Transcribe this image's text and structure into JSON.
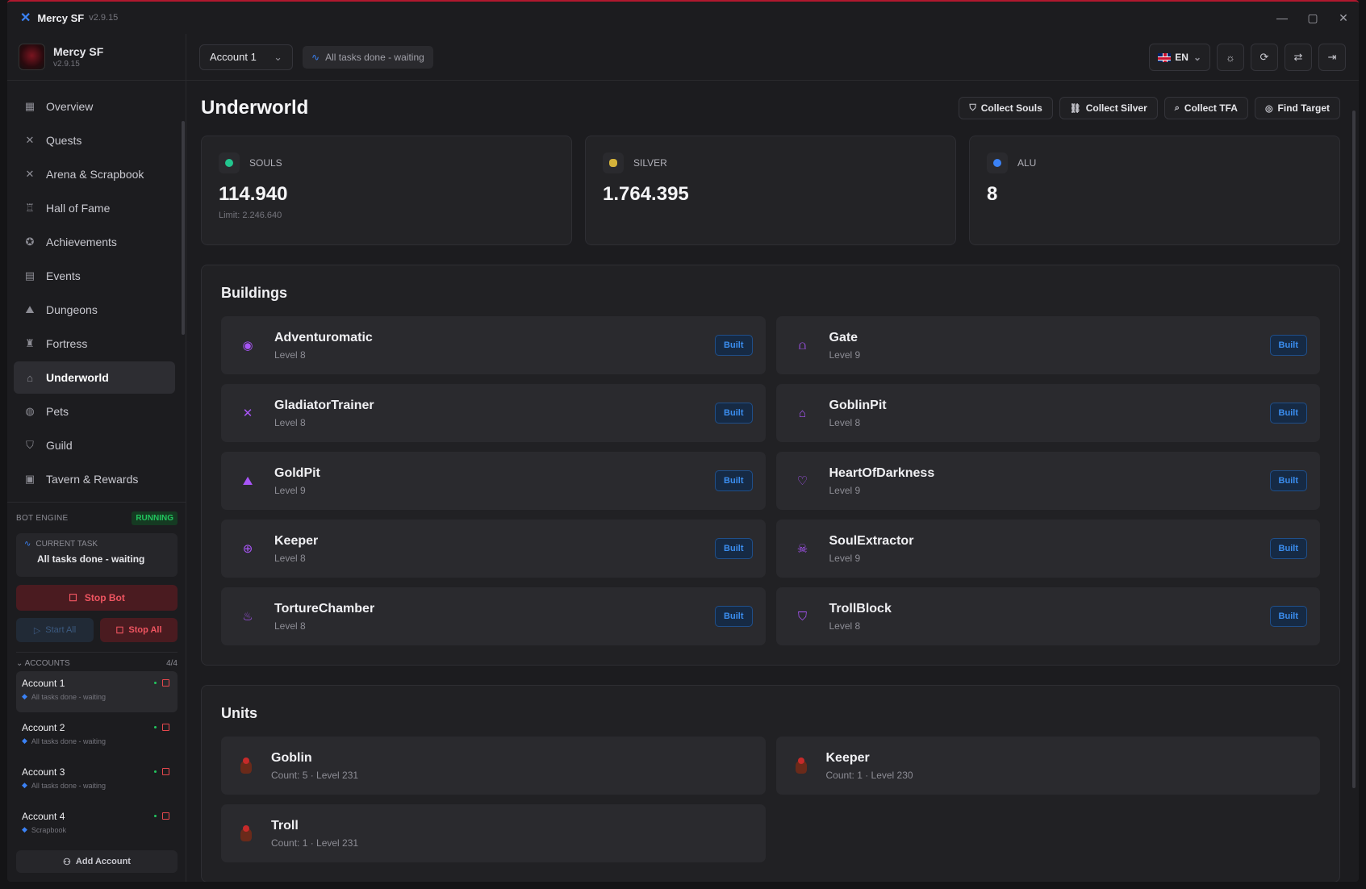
{
  "window": {
    "title": "Mercy SF",
    "version": "v2.9.15"
  },
  "brand": {
    "name": "Mercy SF",
    "version": "v2.9.15"
  },
  "nav": [
    {
      "label": "Overview",
      "icon": "grid-icon",
      "glyph": "▦"
    },
    {
      "label": "Quests",
      "icon": "swords-icon",
      "glyph": "✕"
    },
    {
      "label": "Arena & Scrapbook",
      "icon": "swords-icon",
      "glyph": "✕"
    },
    {
      "label": "Hall of Fame",
      "icon": "trophy-icon",
      "glyph": "♖"
    },
    {
      "label": "Achievements",
      "icon": "award-icon",
      "glyph": "✪"
    },
    {
      "label": "Events",
      "icon": "calendar-icon",
      "glyph": "▤"
    },
    {
      "label": "Dungeons",
      "icon": "mountain-icon",
      "glyph": "⛰"
    },
    {
      "label": "Fortress",
      "icon": "castle-icon",
      "glyph": "♜"
    },
    {
      "label": "Underworld",
      "icon": "home-icon",
      "glyph": "⌂",
      "active": true
    },
    {
      "label": "Pets",
      "icon": "paw-icon",
      "glyph": "◍"
    },
    {
      "label": "Guild",
      "icon": "shield-icon",
      "glyph": "⛉"
    },
    {
      "label": "Tavern & Rewards",
      "icon": "gift-icon",
      "glyph": "▣"
    }
  ],
  "engine": {
    "label": "BOT ENGINE",
    "status": "RUNNING",
    "current_task_label": "CURRENT TASK",
    "current_task": "All tasks done - waiting",
    "stop_bot": "Stop Bot",
    "start_all": "Start All",
    "stop_all": "Stop All"
  },
  "accounts": {
    "label": "ACCOUNTS",
    "count": "4/4",
    "items": [
      {
        "name": "Account 1",
        "status": "All tasks done - waiting"
      },
      {
        "name": "Account 2",
        "status": "All tasks done - waiting"
      },
      {
        "name": "Account 3",
        "status": "All tasks done - waiting"
      },
      {
        "name": "Account 4",
        "status": "Scrapbook"
      }
    ],
    "add": "Add Account"
  },
  "topbar": {
    "account": "Account 1",
    "status": "All tasks done - waiting",
    "lang": "EN"
  },
  "page": {
    "title": "Underworld",
    "actions": [
      {
        "label": "Collect Souls",
        "icon": "soul-icon",
        "glyph": "⛉"
      },
      {
        "label": "Collect Silver",
        "icon": "link-icon",
        "glyph": "⛓"
      },
      {
        "label": "Collect TFA",
        "icon": "search-icon",
        "glyph": "⌕"
      },
      {
        "label": "Find Target",
        "icon": "target-icon",
        "glyph": "◎"
      }
    ]
  },
  "stats": [
    {
      "label": "SOULS",
      "value": "114.940",
      "sub": "Limit: 2.246.640",
      "icon": "soul-gem-icon",
      "color": "#22c58e"
    },
    {
      "label": "SILVER",
      "value": "1.764.395",
      "sub": "",
      "icon": "silver-coin-icon",
      "color": "#d4b23a"
    },
    {
      "label": "ALU",
      "value": "8",
      "sub": "",
      "icon": "alu-icon",
      "color": "#3b82f6"
    }
  ],
  "buildings": {
    "title": "Buildings",
    "built_label": "Built",
    "items": [
      {
        "name": "Adventuromatic",
        "level": "Level 8",
        "icon": "eye-icon",
        "glyph": "◉"
      },
      {
        "name": "Gate",
        "level": "Level 9",
        "icon": "gate-icon",
        "glyph": "⩍"
      },
      {
        "name": "GladiatorTrainer",
        "level": "Level 8",
        "icon": "swords-icon",
        "glyph": "✕"
      },
      {
        "name": "GoblinPit",
        "level": "Level 8",
        "icon": "home-icon",
        "glyph": "⌂"
      },
      {
        "name": "GoldPit",
        "level": "Level 9",
        "icon": "mountain-icon",
        "glyph": "⛰"
      },
      {
        "name": "HeartOfDarkness",
        "level": "Level 9",
        "icon": "heart-icon",
        "glyph": "♡"
      },
      {
        "name": "Keeper",
        "level": "Level 8",
        "icon": "crosshair-icon",
        "glyph": "⊕"
      },
      {
        "name": "SoulExtractor",
        "level": "Level 9",
        "icon": "skull-icon",
        "glyph": "☠"
      },
      {
        "name": "TortureChamber",
        "level": "Level 8",
        "icon": "flame-icon",
        "glyph": "♨"
      },
      {
        "name": "TrollBlock",
        "level": "Level 8",
        "icon": "shield-icon",
        "glyph": "⛉"
      }
    ]
  },
  "units": {
    "title": "Units",
    "items": [
      {
        "name": "Goblin",
        "detail": "Count: 5 · Level 231"
      },
      {
        "name": "Keeper",
        "detail": "Count: 1 · Level 230"
      },
      {
        "name": "Troll",
        "detail": "Count: 1 · Level 231"
      }
    ]
  }
}
